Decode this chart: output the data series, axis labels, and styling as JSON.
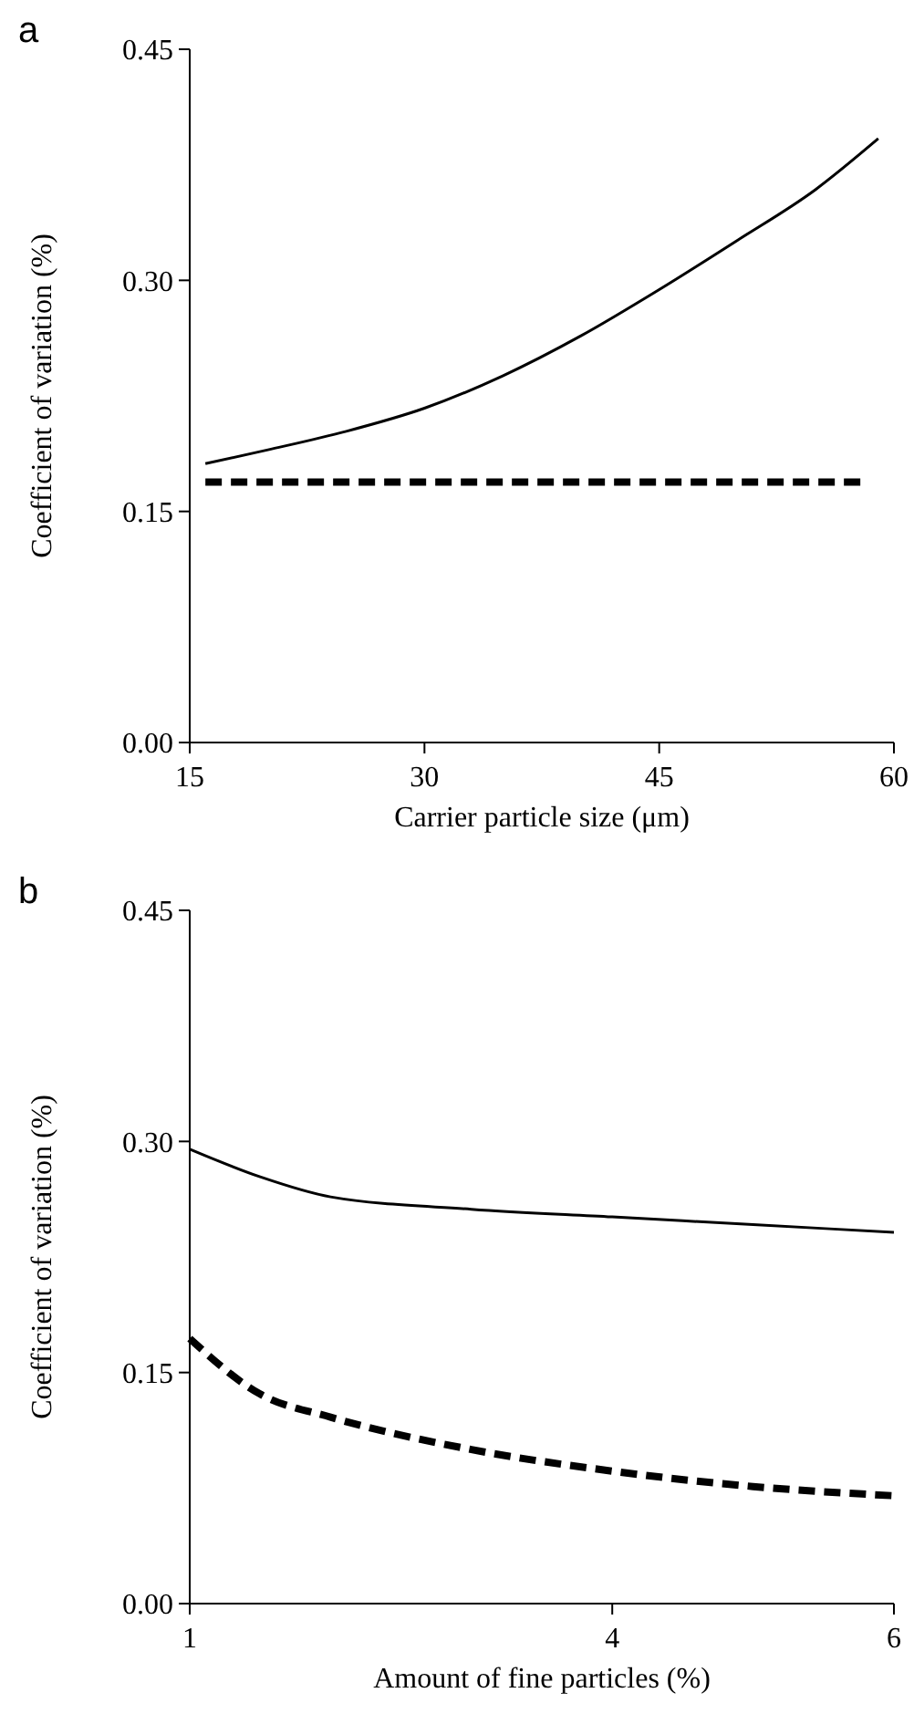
{
  "chart_data": [
    {
      "type": "line",
      "title": "a",
      "xlabel": "Carrier particle size (μm)",
      "ylabel": "Coefficient of variation (%)",
      "xlim": [
        15,
        60
      ],
      "xticks": [
        15,
        30,
        45,
        60
      ],
      "ylim": [
        0,
        0.45
      ],
      "yticks": [
        {
          "value": 0,
          "label": "0.00"
        },
        {
          "value": 0.15,
          "label": "0.15"
        },
        {
          "value": 0.3,
          "label": "0.30"
        },
        {
          "value": 0.45,
          "label": "0.45"
        }
      ],
      "grid": false,
      "marker": "none",
      "series": [
        {
          "color": "#000000",
          "line_style": "solid",
          "x": [
            16,
            20,
            25,
            30,
            35,
            40,
            45,
            50,
            55,
            59
          ],
          "values": [
            0.181,
            0.19,
            0.202,
            0.217,
            0.238,
            0.264,
            0.294,
            0.326,
            0.359,
            0.392
          ]
        },
        {
          "color": "#000000",
          "line_style": "dashed",
          "x": [
            16,
            58
          ],
          "values": [
            0.169,
            0.169
          ]
        }
      ]
    },
    {
      "type": "line",
      "title": "b",
      "xlabel": "Amount of fine particles (%)",
      "ylabel": "Coefficient of variation (%)",
      "xlim": [
        1,
        6
      ],
      "xticks": [
        1,
        4,
        6
      ],
      "ylim": [
        0,
        0.45
      ],
      "yticks": [
        {
          "value": 0,
          "label": "0.00"
        },
        {
          "value": 0.15,
          "label": "0.15"
        },
        {
          "value": 0.3,
          "label": "0.30"
        },
        {
          "value": 0.45,
          "label": "0.45"
        }
      ],
      "grid": false,
      "marker": "none",
      "series": [
        {
          "color": "#000000",
          "line_style": "solid",
          "x": [
            1,
            1.5,
            2,
            3,
            4,
            5,
            6
          ],
          "values": [
            0.295,
            0.277,
            0.264,
            0.256,
            0.251,
            0.246,
            0.241
          ]
        },
        {
          "color": "#000000",
          "line_style": "dashed",
          "x": [
            1,
            1.5,
            2,
            3,
            4,
            5,
            6
          ],
          "values": [
            0.172,
            0.136,
            0.121,
            0.1,
            0.086,
            0.076,
            0.07
          ]
        }
      ]
    }
  ]
}
